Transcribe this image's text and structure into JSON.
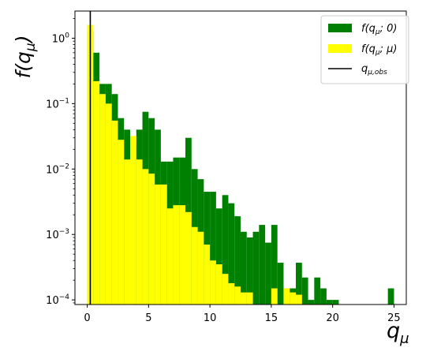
{
  "chart_data": {
    "type": "bar",
    "xlabel": "q_μ",
    "ylabel": "f(q_μ)",
    "xlim": [
      -1.0,
      26.0
    ],
    "ylim": [
      8.5e-05,
      2.6
    ],
    "yscale": "log",
    "grid": false,
    "legend_placement": "top-right",
    "bin_width": 0.5,
    "x_ticks": [
      0,
      5,
      10,
      15,
      20,
      25
    ],
    "x_tick_labels": [
      "0",
      "5",
      "10",
      "15",
      "20",
      "25"
    ],
    "y_tick_labels": [
      {
        "value": 0.0001,
        "base": "10",
        "exp": "−4"
      },
      {
        "value": 0.001,
        "base": "10",
        "exp": "−3"
      },
      {
        "value": 0.01,
        "base": "10",
        "exp": "−2"
      },
      {
        "value": 0.1,
        "base": "10",
        "exp": "−1"
      },
      {
        "value": 1,
        "base": "10",
        "exp": "0"
      }
    ],
    "observed": {
      "label": "q_μ,obs",
      "value": 0.25,
      "color": "#000000"
    },
    "series": [
      {
        "name": "f(q_μ; 0)",
        "legend_main": "f(q",
        "legend_sub": "μ",
        "legend_tail": "; 0)",
        "color": "#008000",
        "bins": [
          [
            0.0,
            1.3
          ],
          [
            0.5,
            0.6
          ],
          [
            1.0,
            0.2
          ],
          [
            1.5,
            0.2
          ],
          [
            2.0,
            0.14
          ],
          [
            2.5,
            0.06
          ],
          [
            3.0,
            0.04
          ],
          [
            3.5,
            0.025
          ],
          [
            4.0,
            0.04
          ],
          [
            4.5,
            0.075
          ],
          [
            5.0,
            0.06
          ],
          [
            5.5,
            0.04
          ],
          [
            6.0,
            0.013
          ],
          [
            6.5,
            0.013
          ],
          [
            7.0,
            0.015
          ],
          [
            7.5,
            0.015
          ],
          [
            8.0,
            0.03
          ],
          [
            8.5,
            0.01
          ],
          [
            9.0,
            0.007
          ],
          [
            9.5,
            0.0045
          ],
          [
            10.0,
            0.0045
          ],
          [
            10.5,
            0.0025
          ],
          [
            11.0,
            0.004
          ],
          [
            11.5,
            0.003
          ],
          [
            12.0,
            0.0019
          ],
          [
            12.5,
            0.0011
          ],
          [
            13.0,
            0.0009
          ],
          [
            13.5,
            0.0011
          ],
          [
            14.0,
            0.0014
          ],
          [
            14.5,
            0.00075
          ],
          [
            15.0,
            0.0014
          ],
          [
            15.5,
            0.00037
          ],
          [
            16.0,
            0.00015
          ],
          [
            16.5,
            0.00015
          ],
          [
            17.0,
            0.00037
          ],
          [
            17.5,
            0.00022
          ],
          [
            18.0,
            0.0001
          ],
          [
            18.5,
            0.00022
          ],
          [
            19.0,
            0.00015
          ],
          [
            19.5,
            0.0001
          ],
          [
            20.0,
            0.0001
          ],
          [
            24.5,
            0.00015
          ]
        ]
      },
      {
        "name": "f(q_μ; μ)",
        "legend_main": "f(q",
        "legend_sub": "μ",
        "legend_tail": "; μ)",
        "color": "#ffff00",
        "bins": [
          [
            0.0,
            1.6
          ],
          [
            0.5,
            0.22
          ],
          [
            1.0,
            0.14
          ],
          [
            1.5,
            0.1
          ],
          [
            2.0,
            0.055
          ],
          [
            2.5,
            0.028
          ],
          [
            3.0,
            0.014
          ],
          [
            3.5,
            0.032
          ],
          [
            4.0,
            0.014
          ],
          [
            4.5,
            0.01
          ],
          [
            5.0,
            0.0085
          ],
          [
            5.5,
            0.0058
          ],
          [
            6.0,
            0.0058
          ],
          [
            6.5,
            0.0025
          ],
          [
            7.0,
            0.0028
          ],
          [
            7.5,
            0.0028
          ],
          [
            8.0,
            0.0022
          ],
          [
            8.5,
            0.0013
          ],
          [
            9.0,
            0.0011
          ],
          [
            9.5,
            0.0007
          ],
          [
            10.0,
            0.0004
          ],
          [
            10.5,
            0.00035
          ],
          [
            11.0,
            0.00025
          ],
          [
            11.5,
            0.00018
          ],
          [
            12.0,
            0.00016
          ],
          [
            12.5,
            0.00013
          ],
          [
            13.0,
            0.00013
          ],
          [
            15.0,
            0.00015
          ],
          [
            16.0,
            0.00015
          ],
          [
            16.5,
            0.00013
          ],
          [
            17.0,
            0.00012
          ]
        ]
      }
    ]
  }
}
